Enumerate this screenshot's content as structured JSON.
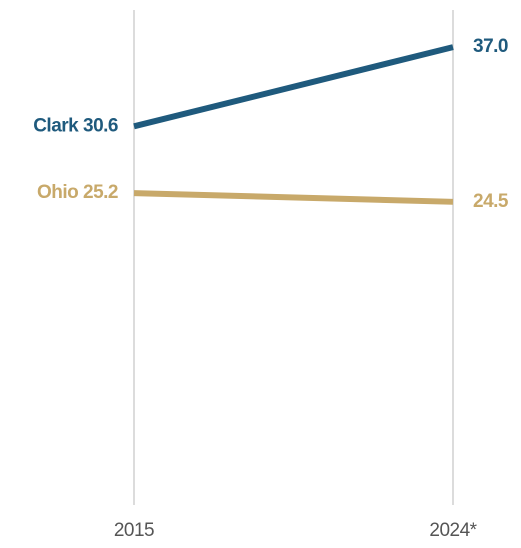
{
  "chart_data": {
    "type": "line",
    "categories": [
      "2015",
      "2024*"
    ],
    "series": [
      {
        "name": "Clark",
        "color": "#1f5a7d",
        "values": [
          30.6,
          37.0
        ],
        "value_labels": [
          "30.6",
          "37.0"
        ]
      },
      {
        "name": "Ohio",
        "color": "#c8a96a",
        "values": [
          25.2,
          24.5
        ],
        "value_labels": [
          "25.2",
          "24.5"
        ]
      }
    ],
    "ylim": [
      0,
      40
    ],
    "grid": false
  }
}
